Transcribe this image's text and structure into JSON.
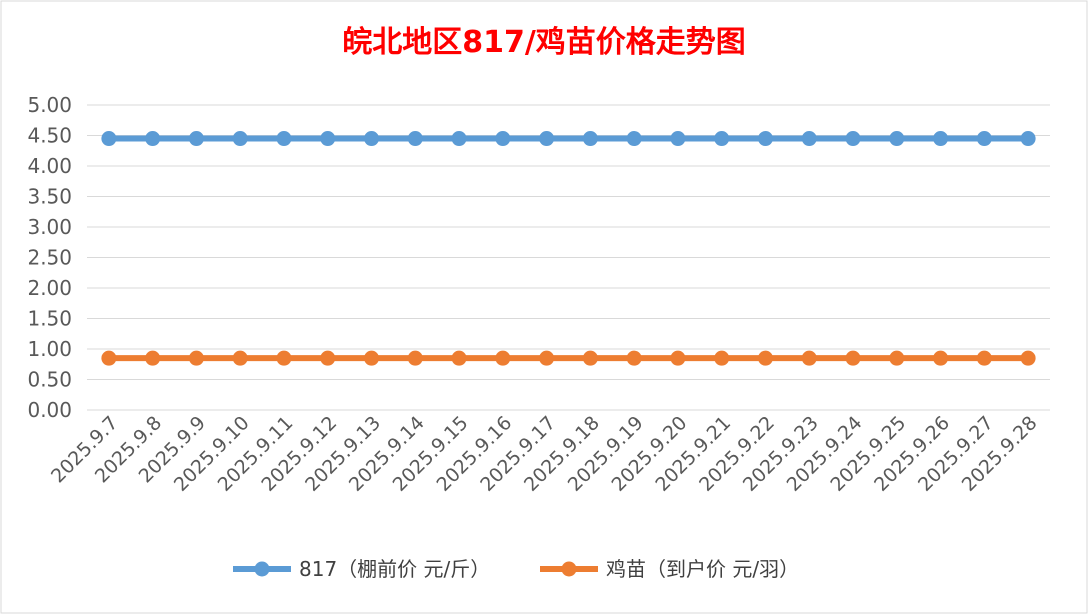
{
  "chart_data": {
    "type": "line",
    "title": "皖北地区817/鸡苗价格走势图",
    "xlabel": "",
    "ylabel": "",
    "x": [
      "2025.9.7",
      "2025.9.8",
      "2025.9.9",
      "2025.9.10",
      "2025.9.11",
      "2025.9.12",
      "2025.9.13",
      "2025.9.14",
      "2025.9.15",
      "2025.9.16",
      "2025.9.17",
      "2025.9.18",
      "2025.9.19",
      "2025.9.20",
      "2025.9.21",
      "2025.9.22",
      "2025.9.23",
      "2025.9.24",
      "2025.9.25",
      "2025.9.26",
      "2025.9.27",
      "2025.9.28"
    ],
    "ylim": [
      0,
      5
    ],
    "yticks": [
      "0.00",
      "0.50",
      "1.00",
      "1.50",
      "2.00",
      "2.50",
      "3.00",
      "3.50",
      "4.00",
      "4.50",
      "5.00"
    ],
    "grid": true,
    "legend_position": "bottom",
    "series": [
      {
        "name": "817（棚前价 元/斤）",
        "color": "#5b9bd5",
        "values": [
          4.45,
          4.45,
          4.45,
          4.45,
          4.45,
          4.45,
          4.45,
          4.45,
          4.45,
          4.45,
          4.45,
          4.45,
          4.45,
          4.45,
          4.45,
          4.45,
          4.45,
          4.45,
          4.45,
          4.45,
          4.45,
          4.45
        ]
      },
      {
        "name": "鸡苗（到户价 元/羽）",
        "color": "#ed7d31",
        "values": [
          0.85,
          0.85,
          0.85,
          0.85,
          0.85,
          0.85,
          0.85,
          0.85,
          0.85,
          0.85,
          0.85,
          0.85,
          0.85,
          0.85,
          0.85,
          0.85,
          0.85,
          0.85,
          0.85,
          0.85,
          0.85,
          0.85
        ]
      }
    ]
  }
}
